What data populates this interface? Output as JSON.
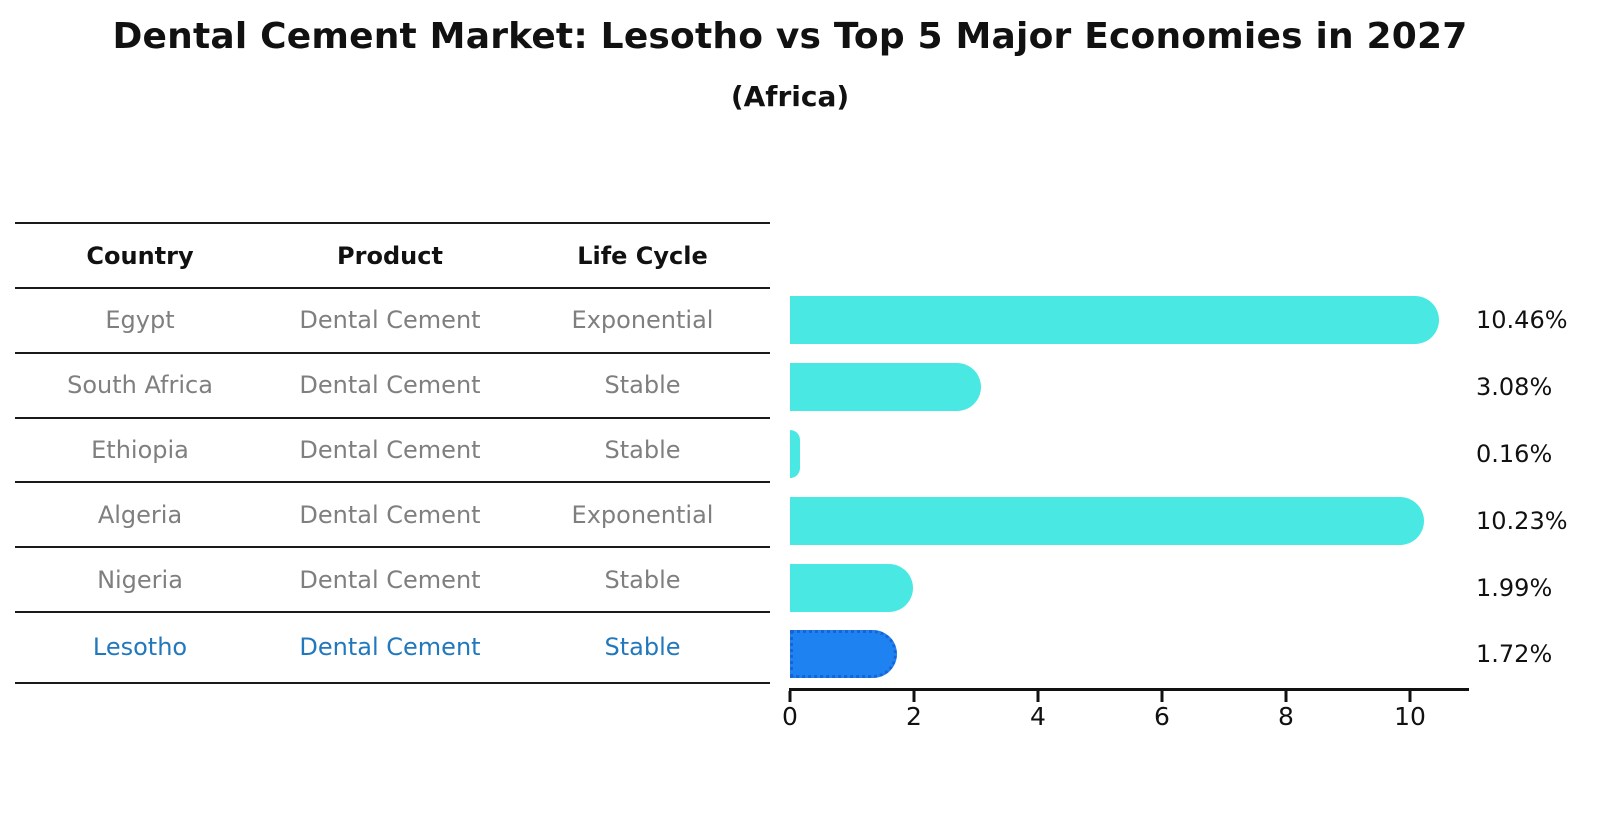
{
  "title": "Dental Cement Market: Lesotho vs Top 5 Major Economies in 2027",
  "subtitle": "(Africa)",
  "table": {
    "headers": [
      "Country",
      "Product",
      "Life Cycle"
    ],
    "rows": [
      {
        "country": "Egypt",
        "product": "Dental Cement",
        "life_cycle": "Exponential",
        "highlighted": false
      },
      {
        "country": "South Africa",
        "product": "Dental Cement",
        "life_cycle": "Stable",
        "highlighted": false
      },
      {
        "country": "Ethiopia",
        "product": "Dental Cement",
        "life_cycle": "Stable",
        "highlighted": false
      },
      {
        "country": "Algeria",
        "product": "Dental Cement",
        "life_cycle": "Exponential",
        "highlighted": false
      },
      {
        "country": "Nigeria",
        "product": "Dental Cement",
        "life_cycle": "Stable",
        "highlighted": false
      },
      {
        "country": "Lesotho",
        "product": "Dental Cement",
        "life_cycle": "Stable",
        "highlighted": true
      }
    ]
  },
  "chart_data": {
    "type": "bar",
    "orientation": "horizontal",
    "title": "Dental Cement Market: Lesotho vs Top 5 Major Economies in 2027",
    "subtitle": "(Africa)",
    "categories": [
      "Egypt",
      "South Africa",
      "Ethiopia",
      "Algeria",
      "Nigeria",
      "Lesotho"
    ],
    "values": [
      10.46,
      3.08,
      0.16,
      10.23,
      1.99,
      1.72
    ],
    "value_labels": [
      "10.46%",
      "3.08%",
      "0.16%",
      "10.23%",
      "1.99%",
      "1.72%"
    ],
    "unit": "%",
    "x_ticks": [
      0,
      2,
      4,
      6,
      8,
      10
    ],
    "xlim": [
      0,
      11.0
    ],
    "grid": false,
    "legend": "none",
    "highlight_index": 5,
    "colors": {
      "bar": "#49E8E2",
      "highlight_bar": "#1E82F0",
      "highlight_bar_border": "#1565D8",
      "highlight_text": "#2278BC",
      "table_text": "#7F7F7F",
      "heading_text": "#111111"
    }
  }
}
